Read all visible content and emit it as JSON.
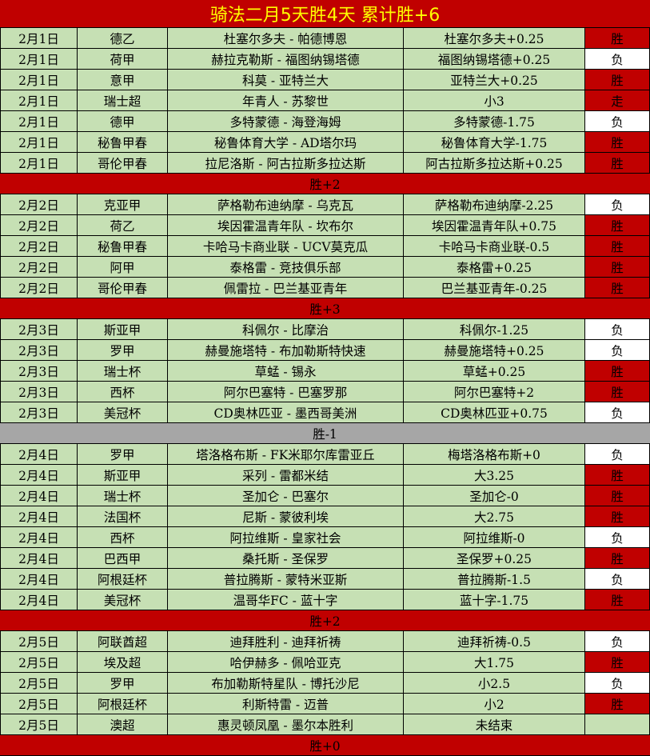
{
  "title": "骑法二月5天胜4天  累计胜+6",
  "colors": {
    "win": "#c00000",
    "lose": "#ffffff",
    "row": "#c6e0b4",
    "title_text": "#ffff00",
    "negative_summary": "#a6a6a6"
  },
  "days": [
    {
      "rows": [
        [
          "2月1日",
          "德乙",
          "杜塞尔多夫 - 帕德博恩",
          "杜塞尔多夫+0.25",
          "胜"
        ],
        [
          "2月1日",
          "荷甲",
          "赫拉克勒斯 - 福图纳锡塔德",
          "福图纳锡塔德+0.25",
          "负"
        ],
        [
          "2月1日",
          "意甲",
          "科莫 - 亚特兰大",
          "亚特兰大+0.25",
          "胜"
        ],
        [
          "2月1日",
          "瑞士超",
          "年青人 - 苏黎世",
          "小3",
          "走"
        ],
        [
          "2月1日",
          "德甲",
          "多特蒙德 - 海登海姆",
          "多特蒙德-1.75",
          "负"
        ],
        [
          "2月1日",
          "秘鲁甲春",
          "秘鲁体育大学 - AD塔尔玛",
          "秘鲁体育大学-1.75",
          "胜"
        ],
        [
          "2月1日",
          "哥伦甲春",
          "拉尼洛斯 - 阿古拉斯多拉达斯",
          "阿古拉斯多拉达斯+0.25",
          "胜"
        ]
      ],
      "summary": "胜+2"
    },
    {
      "rows": [
        [
          "2月2日",
          "克亚甲",
          "萨格勒布迪纳摩 - 乌克瓦",
          "萨格勒布迪纳摩-2.25",
          "负"
        ],
        [
          "2月2日",
          "荷乙",
          "埃因霍温青年队 - 坎布尔",
          "埃因霍温青年队+0.75",
          "胜"
        ],
        [
          "2月2日",
          "秘鲁甲春",
          "卡哈马卡商业联 - UCV莫克瓜",
          "卡哈马卡商业联-0.5",
          "胜"
        ],
        [
          "2月2日",
          "阿甲",
          "泰格雷 - 竞技俱乐部",
          "泰格雷+0.25",
          "胜"
        ],
        [
          "2月2日",
          "哥伦甲春",
          "佩雷拉 - 巴兰基亚青年",
          "巴兰基亚青年-0.25",
          "胜"
        ]
      ],
      "summary": "胜+3"
    },
    {
      "rows": [
        [
          "2月3日",
          "斯亚甲",
          "科佩尔 - 比摩治",
          "科佩尔-1.25",
          "负"
        ],
        [
          "2月3日",
          "罗甲",
          "赫曼施塔特 - 布加勒斯特快速",
          "赫曼施塔特+0.25",
          "负"
        ],
        [
          "2月3日",
          "瑞士杯",
          "草蜢 - 锡永",
          "草蜢+0.25",
          "胜"
        ],
        [
          "2月3日",
          "西杯",
          "阿尔巴塞特 - 巴塞罗那",
          "阿尔巴塞特+2",
          "胜"
        ],
        [
          "2月3日",
          "美冠杯",
          "CD奥林匹亚 - 墨西哥美洲",
          "CD奥林匹亚+0.75",
          "负"
        ]
      ],
      "summary": "胜-1"
    },
    {
      "rows": [
        [
          "2月4日",
          "罗甲",
          "塔洛格布斯 - FK米耶尔库雷亚丘",
          "梅塔洛格布斯+0",
          "负"
        ],
        [
          "2月4日",
          "斯亚甲",
          "采列 - 雷都米结",
          "大3.25",
          "胜"
        ],
        [
          "2月4日",
          "瑞士杯",
          "圣加仑 - 巴塞尔",
          "圣加仑-0",
          "胜"
        ],
        [
          "2月4日",
          "法国杯",
          "尼斯 - 蒙彼利埃",
          "大2.75",
          "胜"
        ],
        [
          "2月4日",
          "西杯",
          "阿拉维斯 - 皇家社会",
          "阿拉维斯-0",
          "负"
        ],
        [
          "2月4日",
          "巴西甲",
          "桑托斯 - 圣保罗",
          "圣保罗+0.25",
          "胜"
        ],
        [
          "2月4日",
          "阿根廷杯",
          "普拉腾斯 - 蒙特米亚斯",
          "普拉腾斯-1.5",
          "负"
        ],
        [
          "2月4日",
          "美冠杯",
          "温哥华FC - 蓝十字",
          "蓝十字-1.75",
          "胜"
        ]
      ],
      "summary": "胜+2"
    },
    {
      "rows": [
        [
          "2月5日",
          "阿联酋超",
          "迪拜胜利 - 迪拜祈祷",
          "迪拜祈祷-0.5",
          "负"
        ],
        [
          "2月5日",
          "埃及超",
          "哈伊赫多 - 佩哈亚克",
          "大1.75",
          "胜"
        ],
        [
          "2月5日",
          "罗甲",
          "布加勒斯特星队 - 博托沙尼",
          "小2.5",
          "负"
        ],
        [
          "2月5日",
          "阿根廷杯",
          "利斯特雷 - 迈普",
          "小2",
          "胜"
        ],
        [
          "2月5日",
          "澳超",
          "惠灵顿凤凰 - 墨尔本胜利",
          "未结束",
          ""
        ]
      ],
      "summary": "胜+0"
    }
  ]
}
